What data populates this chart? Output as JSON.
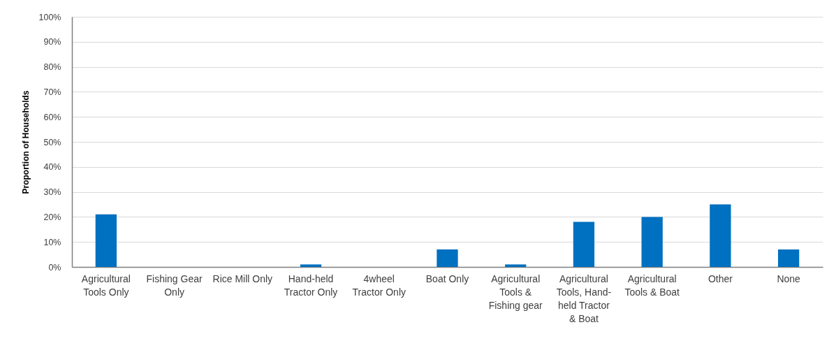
{
  "chart_data": {
    "type": "bar",
    "ylabel": "Proportion of Households",
    "categories": [
      "Agricultural Tools Only",
      "Fishing Gear Only",
      "Rice Mill Only",
      "Hand-held Tractor Only",
      "4wheel Tractor Only",
      "Boat Only",
      "Agricultural Tools & Fishing gear",
      "Agricultural Tools, Hand-held Tractor & Boat",
      "Agricultural Tools & Boat",
      "Other",
      "None"
    ],
    "values": [
      21,
      0,
      0,
      1,
      0,
      7,
      1,
      18,
      20,
      25,
      7
    ],
    "color": "#0070c0",
    "ylim": [
      0,
      100
    ],
    "yticks": [
      {
        "value": 0,
        "label": "0%"
      },
      {
        "value": 10,
        "label": "10%"
      },
      {
        "value": 20,
        "label": "20%"
      },
      {
        "value": 30,
        "label": "30%"
      },
      {
        "value": 40,
        "label": "40%"
      },
      {
        "value": 50,
        "label": "50%"
      },
      {
        "value": 60,
        "label": "60%"
      },
      {
        "value": 70,
        "label": "70%"
      },
      {
        "value": 80,
        "label": "80%"
      },
      {
        "value": 90,
        "label": "90%"
      },
      {
        "value": 100,
        "label": "100%"
      }
    ],
    "grid": "y"
  }
}
